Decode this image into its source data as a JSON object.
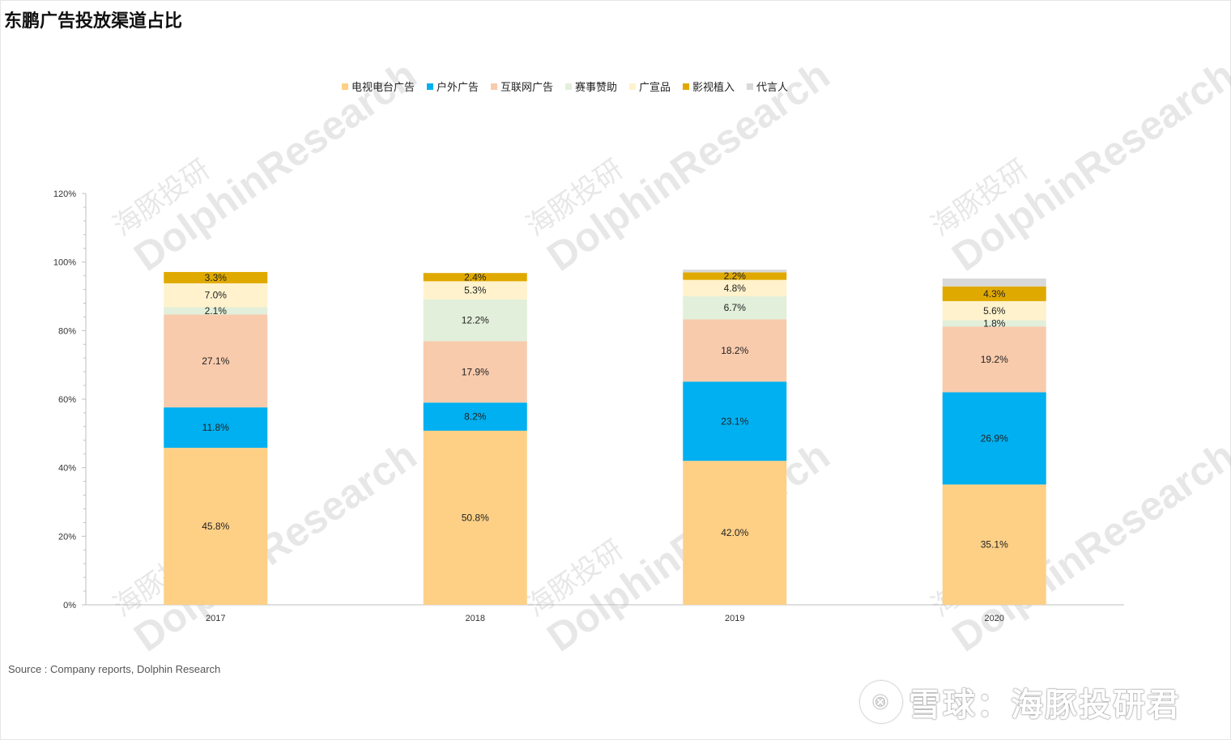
{
  "title": "东鹏广告投放渠道占比",
  "source": "Source : Company reports, Dolphin Research",
  "brand": {
    "logo_glyph": "⊗",
    "text": "雪球：海豚投研君"
  },
  "watermark": {
    "cn": "海豚投研",
    "en": "DolphinResearch"
  },
  "chart_data": {
    "type": "bar",
    "stacked": true,
    "categories": [
      "2017",
      "2018",
      "2019",
      "2020"
    ],
    "ylim": [
      0,
      120
    ],
    "yticks": [
      0,
      20,
      40,
      60,
      80,
      100,
      120
    ],
    "ytick_labels": [
      "0%",
      "20%",
      "40%",
      "60%",
      "80%",
      "100%",
      "120%"
    ],
    "grid": false,
    "legend_position": "top",
    "series": [
      {
        "name": "电视电台广告",
        "color": "#FDD086",
        "values": [
          45.8,
          50.8,
          42.0,
          35.1
        ],
        "labels": [
          "45.8%",
          "50.8%",
          "42.0%",
          "35.1%"
        ]
      },
      {
        "name": "户外广告",
        "color": "#00B0F0",
        "values": [
          11.8,
          8.2,
          23.1,
          26.9
        ],
        "labels": [
          "11.8%",
          "8.2%",
          "23.1%",
          "26.9%"
        ]
      },
      {
        "name": "互联网广告",
        "color": "#F8CBAD",
        "values": [
          27.1,
          17.9,
          18.2,
          19.2
        ],
        "labels": [
          "27.1%",
          "17.9%",
          "18.2%",
          "19.2%"
        ]
      },
      {
        "name": "赛事赞助",
        "color": "#E2EFDA",
        "values": [
          2.1,
          12.2,
          6.7,
          1.8
        ],
        "labels": [
          "2.1%",
          "12.2%",
          "6.7%",
          "1.8%"
        ]
      },
      {
        "name": "广宣品",
        "color": "#FFF2CC",
        "values": [
          7.0,
          5.3,
          4.8,
          5.6
        ],
        "labels": [
          "7.0%",
          "5.3%",
          "4.8%",
          "5.6%"
        ]
      },
      {
        "name": "影视植入",
        "color": "#E0A900",
        "values": [
          3.3,
          2.4,
          2.2,
          4.3
        ],
        "labels": [
          "3.3%",
          "2.4%",
          "2.2%",
          "4.3%"
        ]
      },
      {
        "name": "代言人",
        "color": "#D9D9D9",
        "values": [
          0,
          0,
          0.8,
          2.3
        ],
        "labels": [
          "",
          "",
          "",
          ""
        ]
      }
    ]
  }
}
